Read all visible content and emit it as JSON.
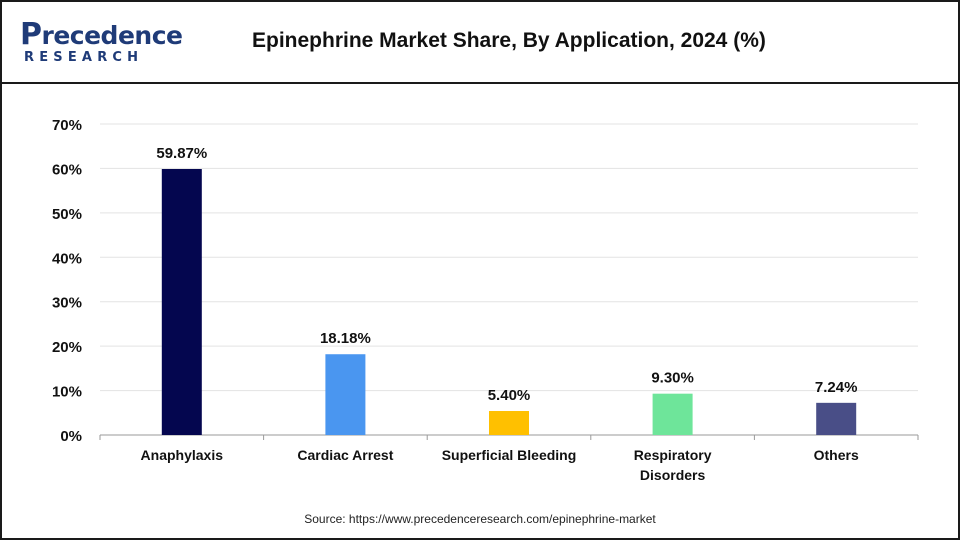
{
  "header": {
    "logo_top": "recedence",
    "logo_initial": "P",
    "logo_bottom": "RESEARCH",
    "title": "Epinephrine Market Share, By Application, 2024 (%)"
  },
  "source": "Source: https://www.precedenceresearch.com/epinephrine-market",
  "chart_data": {
    "type": "bar",
    "title": "Epinephrine Market Share, By Application, 2024 (%)",
    "categories": [
      "Anaphylaxis",
      "Cardiac Arrest",
      "Superficial Bleeding",
      "Respiratory Disorders",
      "Others"
    ],
    "category_lines": [
      [
        "Anaphylaxis"
      ],
      [
        "Cardiac Arrest"
      ],
      [
        "Superficial Bleeding"
      ],
      [
        "Respiratory",
        "Disorders"
      ],
      [
        "Others"
      ]
    ],
    "values": [
      59.87,
      18.18,
      5.4,
      9.3,
      7.24
    ],
    "value_labels": [
      "59.87%",
      "18.18%",
      "5.40%",
      "9.30%",
      "7.24%"
    ],
    "colors": [
      "#04064f",
      "#4a96f0",
      "#ffc000",
      "#6ee59a",
      "#494e87"
    ],
    "ylim": [
      0,
      70
    ],
    "yticks": [
      0,
      10,
      20,
      30,
      40,
      50,
      60,
      70
    ],
    "ytick_labels": [
      "0%",
      "10%",
      "20%",
      "30%",
      "40%",
      "50%",
      "60%",
      "70%"
    ],
    "grid": true,
    "xlabel": "",
    "ylabel": ""
  }
}
